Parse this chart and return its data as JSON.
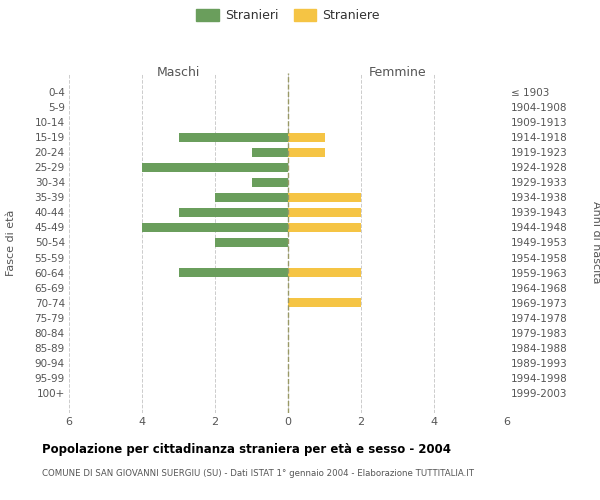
{
  "age_groups": [
    "0-4",
    "5-9",
    "10-14",
    "15-19",
    "20-24",
    "25-29",
    "30-34",
    "35-39",
    "40-44",
    "45-49",
    "50-54",
    "55-59",
    "60-64",
    "65-69",
    "70-74",
    "75-79",
    "80-84",
    "85-89",
    "90-94",
    "95-99",
    "100+"
  ],
  "birth_years": [
    "1999-2003",
    "1994-1998",
    "1989-1993",
    "1984-1988",
    "1979-1983",
    "1974-1978",
    "1969-1973",
    "1964-1968",
    "1959-1963",
    "1954-1958",
    "1949-1953",
    "1944-1948",
    "1939-1943",
    "1934-1938",
    "1929-1933",
    "1924-1928",
    "1919-1923",
    "1914-1918",
    "1909-1913",
    "1904-1908",
    "≤ 1903"
  ],
  "males": [
    0,
    0,
    0,
    3,
    1,
    4,
    1,
    2,
    3,
    4,
    2,
    0,
    3,
    0,
    0,
    0,
    0,
    0,
    0,
    0,
    0
  ],
  "females": [
    0,
    0,
    0,
    1,
    1,
    0,
    0,
    2,
    2,
    2,
    0,
    0,
    2,
    0,
    2,
    0,
    0,
    0,
    0,
    0,
    0
  ],
  "male_color": "#6a9e5c",
  "female_color": "#f5c444",
  "bar_height": 0.6,
  "xlim": 6,
  "title": "Popolazione per cittadinanza straniera per à e sesso - 2004",
  "title_bold": "Popolazione per cittadinanza straniera per età e sesso - 2004",
  "subtitle": "COMUNE DI SAN GIOVANNI SUERGIU (SU) - Dati ISTAT 1° gennaio 2004 - Elaborazione TUTTITALIA.IT",
  "xlabel_left": "Maschi",
  "xlabel_right": "Femmine",
  "ylabel_left": "Fasce di età",
  "ylabel_right": "Anni di nascita",
  "legend_male": "Stranieri",
  "legend_female": "Straniere",
  "grid_color": "#cccccc",
  "background_color": "#ffffff",
  "centerline_color": "#999966",
  "label_color": "#555555",
  "header_color": "#555555"
}
